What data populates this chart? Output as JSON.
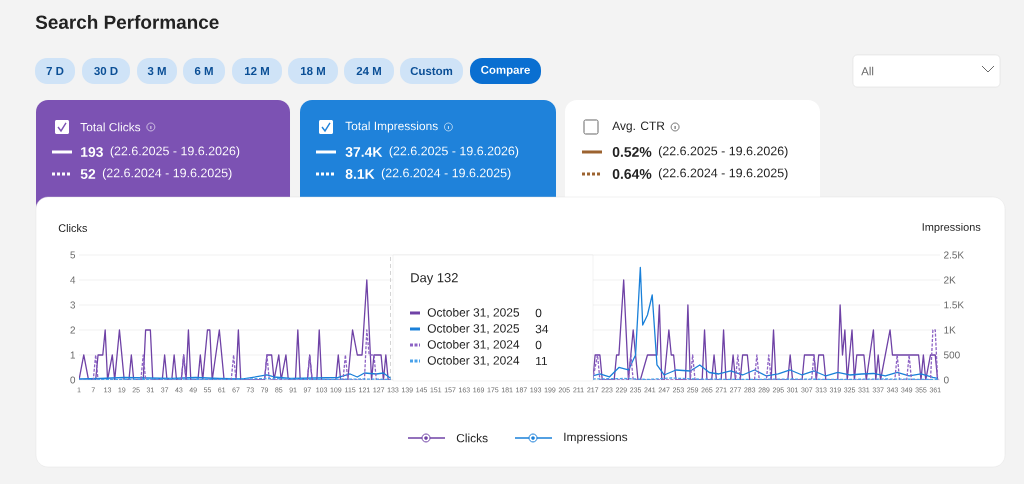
{
  "chart_data": {
    "type": "line",
    "title": "Search Performance",
    "ylabel": "Clicks",
    "y2label": "Impressions",
    "xlim": [
      1,
      363
    ],
    "xticks": [
      1,
      7,
      13,
      19,
      25,
      31,
      37,
      43,
      49,
      55,
      61,
      67,
      73,
      79,
      85,
      91,
      97,
      103,
      109,
      115,
      121,
      127,
      133,
      139,
      145,
      151,
      157,
      163,
      169,
      175,
      181,
      187,
      193,
      199,
      205,
      211,
      217,
      223,
      229,
      235,
      241,
      247,
      253,
      259,
      265,
      271,
      277,
      283,
      289,
      295,
      301,
      307,
      313,
      319,
      325,
      331,
      337,
      343,
      349,
      355,
      361
    ],
    "ylim": [
      0,
      5
    ],
    "yticks": [
      0,
      1,
      2,
      3,
      4,
      5
    ],
    "y2lim": [
      0,
      2500
    ],
    "y2ticks": [
      0,
      500,
      {
        "value": 1000,
        "label": "1K"
      },
      {
        "value": 1500,
        "label": "1.5K"
      },
      {
        "value": 2000,
        "label": "2K"
      },
      {
        "value": 2500,
        "label": "2.5K"
      }
    ],
    "grid": "y",
    "legend": "bottom",
    "ref_lines": [
      {
        "axis": "x",
        "value": 132,
        "color": "#c4c4c4",
        "line_style": "dashed"
      }
    ],
    "series": [
      {
        "name": "Clicks",
        "color": "#6f42a6",
        "line_style": "solid",
        "x": [
          1,
          3,
          5,
          8,
          9,
          11,
          12,
          13,
          15,
          16,
          18,
          20,
          22,
          23,
          24,
          28,
          29,
          31,
          32,
          36,
          37,
          38,
          40,
          41,
          42,
          44,
          45,
          46,
          47,
          48,
          51,
          52,
          53,
          55,
          56,
          57,
          60,
          62,
          67,
          68,
          69,
          79,
          80,
          82,
          83,
          85,
          86,
          88,
          89,
          92,
          93,
          94,
          97,
          98,
          99,
          101,
          102,
          103,
          109,
          110,
          111,
          114,
          116,
          118,
          120,
          122,
          124,
          125,
          128,
          129,
          130,
          131,
          132,
          175,
          217,
          218,
          220,
          221,
          226,
          227,
          228,
          230,
          232,
          234,
          235,
          236,
          237,
          240,
          244,
          245,
          246,
          247,
          249,
          250,
          251,
          252,
          256,
          257,
          258,
          263,
          264,
          265,
          267,
          268,
          269,
          271,
          272,
          273,
          275,
          276,
          277,
          279,
          280,
          282,
          283,
          292,
          293,
          294,
          299,
          300,
          301,
          305,
          306,
          310,
          311,
          312,
          314,
          315,
          320,
          321,
          322,
          323,
          324,
          326,
          327,
          328,
          331,
          332,
          335,
          336,
          337,
          338,
          342,
          343,
          354,
          355,
          356,
          357,
          359,
          361,
          362
        ],
        "values": [
          0,
          1,
          0,
          0,
          1,
          1,
          2,
          0,
          1,
          0,
          2,
          0,
          0,
          1,
          0,
          0,
          2,
          2,
          0,
          0,
          1,
          0,
          0,
          1,
          0,
          0,
          1,
          0,
          2,
          0,
          0,
          1,
          0,
          2,
          2,
          0,
          2,
          0,
          0,
          2,
          0,
          0,
          1,
          1,
          0,
          1,
          0,
          1,
          0,
          0,
          2,
          0,
          0,
          1,
          0,
          0,
          2,
          0,
          0,
          1,
          0,
          0,
          2,
          1,
          1,
          4,
          0,
          1,
          1,
          0,
          1,
          0,
          0,
          null,
          0,
          1,
          1,
          0,
          0,
          1,
          1,
          4,
          0,
          2,
          1,
          0,
          0,
          1,
          1,
          3,
          0,
          0,
          2,
          1,
          1,
          0,
          0,
          3,
          0,
          0,
          2,
          0,
          0,
          1,
          0,
          0,
          2,
          0,
          0,
          1,
          0,
          0,
          1,
          1,
          0,
          0,
          2,
          0,
          0,
          1,
          0,
          0,
          1,
          1,
          0,
          1,
          1,
          0,
          0,
          3,
          1,
          2,
          0,
          2,
          0,
          1,
          1,
          0,
          2,
          0,
          1,
          0,
          2,
          1,
          1,
          0,
          1,
          0,
          1,
          1,
          0
        ]
      },
      {
        "name": "Impressions",
        "color": "#1a80d9",
        "line_style": "solid",
        "axis": "y2",
        "x": [
          1,
          10,
          20,
          30,
          40,
          50,
          60,
          70,
          80,
          83,
          90,
          100,
          110,
          115,
          118,
          121,
          126,
          129,
          132,
          175,
          217,
          220,
          224,
          228,
          232,
          235,
          237,
          238,
          240,
          242,
          244,
          247,
          252,
          258,
          262,
          266,
          270,
          275,
          280,
          285,
          290,
          295,
          300,
          305,
          310,
          315,
          320,
          325,
          330,
          335,
          340,
          345,
          350,
          355,
          360,
          362
        ],
        "values": [
          20,
          30,
          50,
          40,
          30,
          50,
          30,
          20,
          100,
          60,
          30,
          40,
          50,
          120,
          60,
          140,
          120,
          140,
          34,
          null,
          80,
          120,
          60,
          250,
          200,
          500,
          2250,
          1100,
          1300,
          1700,
          300,
          100,
          200,
          180,
          300,
          150,
          120,
          180,
          100,
          200,
          80,
          120,
          200,
          100,
          180,
          80,
          150,
          100,
          120,
          130,
          80,
          150,
          80,
          120,
          50,
          30
        ]
      },
      {
        "color": "#8c62c4",
        "line_style": "dotted",
        "x": [
          1,
          7,
          8,
          9,
          27,
          28,
          29,
          44,
          45,
          46,
          65,
          66,
          67,
          79,
          80,
          81,
          97,
          98,
          99,
          112,
          113,
          114,
          121,
          122,
          123,
          125,
          126,
          132,
          175,
          217,
          219,
          220,
          232,
          233,
          234,
          258,
          259,
          260,
          277,
          278,
          279,
          285,
          286,
          287,
          290,
          291,
          292,
          309,
          310,
          311,
          344,
          345,
          346,
          349,
          350,
          351,
          359,
          360,
          361,
          362
        ],
        "values": [
          0,
          0,
          1,
          0,
          0,
          1,
          0,
          0,
          1,
          0,
          0,
          1,
          0,
          0,
          1,
          0,
          0,
          1,
          0,
          0,
          1,
          0,
          0,
          2,
          1,
          1,
          0,
          0,
          null,
          0,
          1,
          0,
          0,
          1,
          0,
          0,
          1,
          0,
          0,
          1,
          0,
          0,
          1,
          0,
          0,
          1,
          0,
          0,
          1,
          0,
          0,
          1,
          0,
          0,
          1,
          0,
          0,
          2,
          2,
          0
        ]
      },
      {
        "color": "#4aa2ea",
        "line_style": "dotted",
        "axis": "y2",
        "x": [
          1,
          20,
          40,
          60,
          80,
          100,
          120,
          132,
          175,
          217,
          230,
          240,
          250,
          260,
          280,
          300,
          320,
          340,
          362
        ],
        "values": [
          0,
          10,
          20,
          10,
          30,
          10,
          20,
          11,
          null,
          20,
          30,
          10,
          40,
          20,
          10,
          20,
          10,
          20,
          10
        ]
      }
    ],
    "annotations": [
      "7 D",
      "30 D",
      "3 M",
      "6 M",
      "12 M",
      "18 M",
      "24 M",
      "Custom",
      "Compare",
      "All",
      "Total Clicks",
      "193",
      "(22.6.2025 - 19.6.2026)",
      "52",
      "(22.6.2024 - 19.6.2025)",
      "Total Impressions",
      "37.4K",
      "(22.6.2025 - 19.6.2026)",
      "8.1K",
      "(22.6.2024 - 19.6.2025)",
      "Avg. CTR",
      "0.52%",
      "(22.6.2025 - 19.6.2026)",
      "0.64%",
      "(22.6.2024 - 19.6.2025)",
      "Day 132",
      "October 31, 2025",
      "0",
      "October 31, 2025",
      "34",
      "October 31, 2024",
      "0",
      "October 31, 2024",
      "11"
    ]
  }
}
